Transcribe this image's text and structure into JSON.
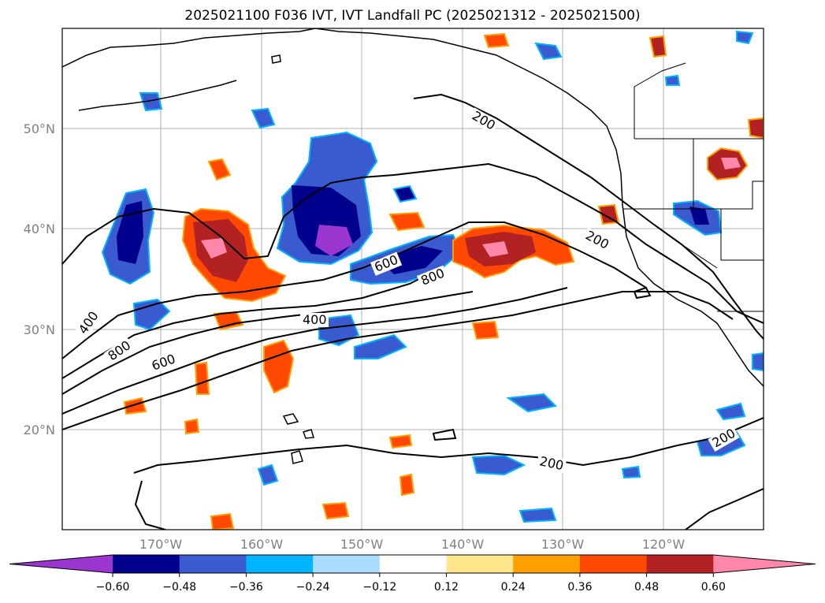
{
  "title": "2025021100 F036 IVT, IVT Landfall PC (2025021312 - 2025021500)",
  "lat_ticks": [
    "50°N",
    "40°N",
    "30°N",
    "20°N"
  ],
  "lon_ticks": [
    "170°W",
    "160°W",
    "150°W",
    "140°W",
    "130°W",
    "120°W"
  ],
  "contour_labels": [
    "200",
    "200",
    "200",
    "200",
    "600",
    "800",
    "400",
    "400",
    "800",
    "600"
  ],
  "colorbar": {
    "ticks": [
      "−0.60",
      "−0.48",
      "−0.36",
      "−0.24",
      "−0.12",
      "0.12",
      "0.24",
      "0.36",
      "0.48",
      "0.60"
    ],
    "colors": [
      "#9a35d0",
      "#00008c",
      "#3a5bd0",
      "#00b4ff",
      "#aadcff",
      "#ffffff",
      "#ffe68c",
      "#ffa000",
      "#ff4800",
      "#b22222",
      "#ff88aa"
    ]
  }
}
